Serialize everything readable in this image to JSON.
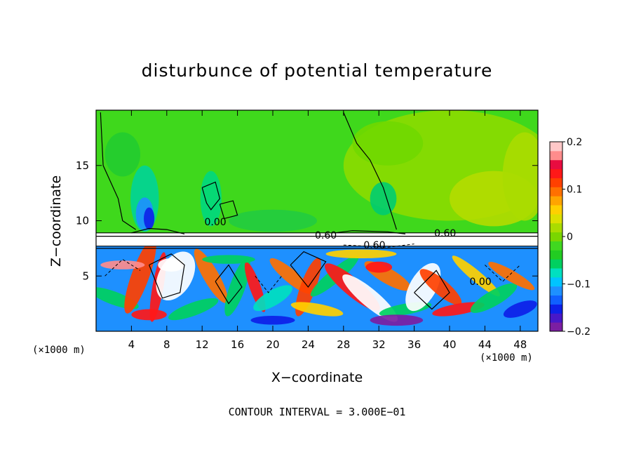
{
  "chart_data": {
    "type": "heatmap",
    "title": "disturbunce of potential temperature",
    "xlabel": "X−coordinate",
    "ylabel": "Z−coordinate",
    "x_unit": "(×1000 m)",
    "z_unit": "(×1000 m)",
    "xlim": [
      0,
      50
    ],
    "ylim": [
      0,
      20
    ],
    "x_ticks": [
      "4",
      "8",
      "12",
      "16",
      "20",
      "24",
      "28",
      "32",
      "36",
      "40",
      "44",
      "48"
    ],
    "x_tick_values": [
      4,
      8,
      12,
      16,
      20,
      24,
      28,
      32,
      36,
      40,
      44,
      48
    ],
    "y_ticks": [
      "5",
      "10",
      "15"
    ],
    "y_tick_values": [
      5,
      10,
      15
    ],
    "colorbar": {
      "min": -0.2,
      "max": 0.2,
      "ticks": [
        "0.2",
        "0.1",
        "0",
        "−0.1",
        "−0.2"
      ],
      "tick_values": [
        0.2,
        0.1,
        0,
        -0.1,
        -0.2
      ],
      "colors": [
        "#7b1ea2",
        "#4818c8",
        "#0d20e8",
        "#1060ff",
        "#1e90ff",
        "#00c4ff",
        "#00e0c0",
        "#00d060",
        "#22cc22",
        "#40d820",
        "#7ad600",
        "#aadc00",
        "#dde000",
        "#ffd000",
        "#ffa400",
        "#ff7000",
        "#ff4000",
        "#ff1818",
        "#e80c40",
        "#ff8c8c",
        "#ffc8c8"
      ]
    },
    "contour_labels": [
      {
        "text": "0.60",
        "x": 26.0,
        "z": 8.7
      },
      {
        "text": "0.60",
        "x": 39.5,
        "z": 8.9
      },
      {
        "text": "0.60",
        "x": 31.5,
        "z": 7.8
      },
      {
        "text": "0.00",
        "x": 13.5,
        "z": 9.9
      },
      {
        "text": "0.00",
        "x": 43.5,
        "z": 4.5
      }
    ],
    "contour_interval_text": "CONTOUR INTERVAL = 3.000E−01"
  }
}
